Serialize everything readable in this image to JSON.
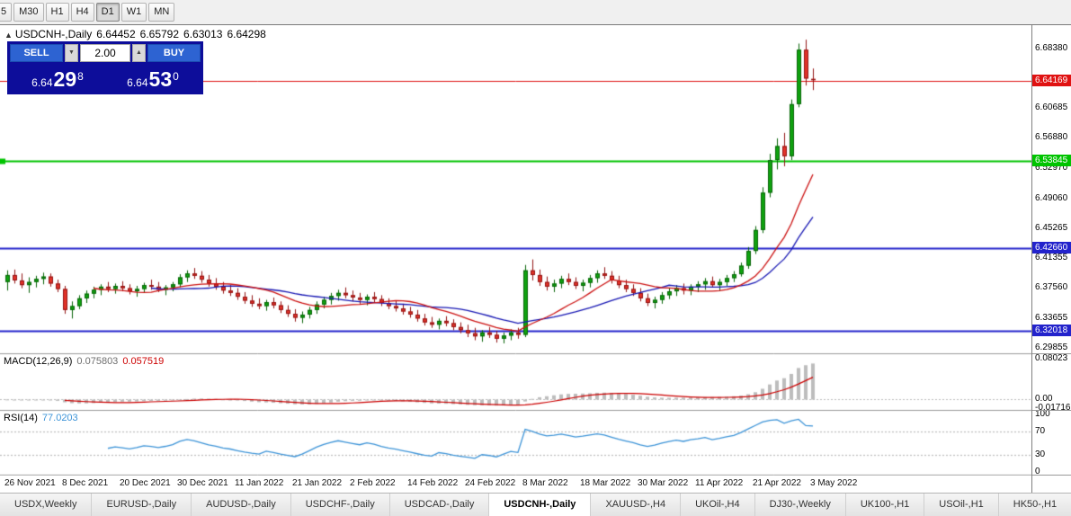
{
  "toolbar": {
    "timeframes": [
      {
        "label": "5",
        "active": false
      },
      {
        "label": "M30",
        "active": false
      },
      {
        "label": "H1",
        "active": false
      },
      {
        "label": "H4",
        "active": false
      },
      {
        "label": "D1",
        "active": true
      },
      {
        "label": "W1",
        "active": false
      },
      {
        "label": "MN",
        "active": false
      }
    ]
  },
  "icons": {
    "collapse": "▲",
    "vol_down": "▼",
    "vol_up": "▲"
  },
  "title": {
    "symbol": "USDCNH-,Daily",
    "open": "6.64452",
    "high": "6.65792",
    "low": "6.63013",
    "close": "6.64298"
  },
  "trade_panel": {
    "sell_label": "SELL",
    "buy_label": "BUY",
    "volume": "2.00",
    "sell_price": {
      "small": "6.64",
      "big": "29",
      "sup": "8"
    },
    "buy_price": {
      "small": "6.64",
      "big": "53",
      "sup": "0"
    }
  },
  "macd_panel": {
    "label": "MACD(12,26,9)",
    "main_value": "0.075803",
    "signal_value": "0.057519",
    "axis": [
      {
        "label": "0.08023",
        "value": 0.08023
      },
      {
        "label": "0.00",
        "value": 0
      },
      {
        "label": "-0.01716",
        "value": -0.01716
      }
    ]
  },
  "rsi_panel": {
    "label": "RSI(14)",
    "value": "77.0203",
    "axis": [
      {
        "label": "100",
        "value": 100
      },
      {
        "label": "70",
        "value": 70
      },
      {
        "label": "30",
        "value": 30
      },
      {
        "label": "0",
        "value": 0
      }
    ],
    "levels": [
      70,
      30
    ]
  },
  "price_axis_labels": [
    "6.68380",
    "6.60685",
    "6.56880",
    "6.52970",
    "6.49060",
    "6.45265",
    "6.41355",
    "6.37560",
    "6.33655",
    "6.29855"
  ],
  "time_axis": [
    {
      "text": "26 Nov 2021",
      "bar": 0
    },
    {
      "text": "8 Dec 2021",
      "bar": 8
    },
    {
      "text": "20 Dec 2021",
      "bar": 16
    },
    {
      "text": "30 Dec 2021",
      "bar": 24
    },
    {
      "text": "11 Jan 2022",
      "bar": 32
    },
    {
      "text": "21 Jan 2022",
      "bar": 40
    },
    {
      "text": "2 Feb 2022",
      "bar": 48
    },
    {
      "text": "14 Feb 2022",
      "bar": 56
    },
    {
      "text": "24 Feb 2022",
      "bar": 64
    },
    {
      "text": "8 Mar 2022",
      "bar": 72
    },
    {
      "text": "18 Mar 2022",
      "bar": 80
    },
    {
      "text": "30 Mar 2022",
      "bar": 88
    },
    {
      "text": "11 Apr 2022",
      "bar": 96
    },
    {
      "text": "21 Apr 2022",
      "bar": 104
    },
    {
      "text": "3 May 2022",
      "bar": 112
    }
  ],
  "tabs": [
    {
      "label": "USDX,Weekly",
      "active": false
    },
    {
      "label": "EURUSD-,Daily",
      "active": false
    },
    {
      "label": "AUDUSD-,Daily",
      "active": false
    },
    {
      "label": "USDCHF-,Daily",
      "active": false
    },
    {
      "label": "USDCAD-,Daily",
      "active": false
    },
    {
      "label": "USDCNH-,Daily",
      "active": true
    },
    {
      "label": "XAUUSD-,H4",
      "active": false
    },
    {
      "label": "UKOil-,H4",
      "active": false
    },
    {
      "label": "DJ30-,Weekly",
      "active": false
    },
    {
      "label": "UK100-,H1",
      "active": false
    },
    {
      "label": "USOil-,H1",
      "active": false
    },
    {
      "label": "HK50-,H1",
      "active": false
    }
  ],
  "chart_data": {
    "type": "candlestick",
    "symbol": "USDCNH-",
    "timeframe": "Daily",
    "y_range": [
      6.2912,
      6.7137
    ],
    "levels": [
      {
        "price": 6.64169,
        "label": "6.64169",
        "color": "#e01212",
        "line_width": 1,
        "handle": false
      },
      {
        "price": 6.53845,
        "label": "6.53845",
        "color": "#00c400",
        "line_width": 2,
        "handle": true
      },
      {
        "price": 6.4266,
        "label": "6.42660",
        "color": "#2323cc",
        "line_width": 2,
        "handle": false
      },
      {
        "price": 6.32018,
        "label": "6.32018",
        "color": "#2323cc",
        "line_width": 2,
        "handle": false
      }
    ],
    "ma_fast": {
      "period": 13,
      "color": "#cc1111"
    },
    "ma_slow": {
      "period": 21,
      "color": "#1818b4"
    },
    "macd": {
      "fast": 12,
      "slow": 26,
      "signal": 9,
      "range": [
        -0.01716,
        0.08023
      ]
    },
    "rsi": {
      "period": 14,
      "range": [
        0,
        100
      ]
    },
    "colors": {
      "up": "#0fa30f",
      "up_border": "#076307",
      "down": "#e23228",
      "down_border": "#921313",
      "macd_hist": "#bdbdbd",
      "macd_signal": "#cc0000",
      "rsi_line": "#3d94d8",
      "dotted": "#bcbcbc",
      "separator": "#9a9a9a"
    },
    "ohlc": [
      [
        6.383,
        6.398,
        6.372,
        6.392
      ],
      [
        6.392,
        6.399,
        6.381,
        6.385
      ],
      [
        6.385,
        6.394,
        6.375,
        6.379
      ],
      [
        6.379,
        6.389,
        6.369,
        6.383
      ],
      [
        6.383,
        6.391,
        6.376,
        6.387
      ],
      [
        6.387,
        6.395,
        6.38,
        6.39
      ],
      [
        6.39,
        6.394,
        6.377,
        6.381
      ],
      [
        6.381,
        6.386,
        6.37,
        6.374
      ],
      [
        6.374,
        6.378,
        6.342,
        6.347
      ],
      [
        6.347,
        6.358,
        6.336,
        6.352
      ],
      [
        6.352,
        6.366,
        6.348,
        6.362
      ],
      [
        6.362,
        6.372,
        6.356,
        6.368
      ],
      [
        6.368,
        6.377,
        6.362,
        6.373
      ],
      [
        6.373,
        6.38,
        6.366,
        6.377
      ],
      [
        6.377,
        6.383,
        6.37,
        6.374
      ],
      [
        6.374,
        6.381,
        6.368,
        6.378
      ],
      [
        6.378,
        6.384,
        6.371,
        6.375
      ],
      [
        6.375,
        6.38,
        6.367,
        6.371
      ],
      [
        6.371,
        6.378,
        6.364,
        6.374
      ],
      [
        6.374,
        6.382,
        6.369,
        6.379
      ],
      [
        6.379,
        6.386,
        6.373,
        6.377
      ],
      [
        6.377,
        6.383,
        6.37,
        6.373
      ],
      [
        6.373,
        6.379,
        6.366,
        6.376
      ],
      [
        6.376,
        6.383,
        6.371,
        6.38
      ],
      [
        6.38,
        6.393,
        6.376,
        6.389
      ],
      [
        6.389,
        6.398,
        6.383,
        6.394
      ],
      [
        6.394,
        6.401,
        6.387,
        6.391
      ],
      [
        6.391,
        6.397,
        6.382,
        6.386
      ],
      [
        6.386,
        6.392,
        6.377,
        6.381
      ],
      [
        6.381,
        6.388,
        6.373,
        6.377
      ],
      [
        6.377,
        6.383,
        6.368,
        6.372
      ],
      [
        6.372,
        6.379,
        6.365,
        6.369
      ],
      [
        6.369,
        6.375,
        6.36,
        6.364
      ],
      [
        6.364,
        6.37,
        6.355,
        6.359
      ],
      [
        6.359,
        6.366,
        6.351,
        6.355
      ],
      [
        6.355,
        6.362,
        6.348,
        6.352
      ],
      [
        6.352,
        6.36,
        6.346,
        6.357
      ],
      [
        6.357,
        6.363,
        6.349,
        6.353
      ],
      [
        6.353,
        6.358,
        6.343,
        6.347
      ],
      [
        6.347,
        6.353,
        6.338,
        6.342
      ],
      [
        6.342,
        6.348,
        6.332,
        6.337
      ],
      [
        6.337,
        6.345,
        6.33,
        6.341
      ],
      [
        6.341,
        6.351,
        6.336,
        6.347
      ],
      [
        6.347,
        6.358,
        6.342,
        6.354
      ],
      [
        6.354,
        6.364,
        6.349,
        6.36
      ],
      [
        6.36,
        6.369,
        6.354,
        6.365
      ],
      [
        6.365,
        6.373,
        6.359,
        6.369
      ],
      [
        6.369,
        6.376,
        6.362,
        6.366
      ],
      [
        6.366,
        6.372,
        6.358,
        6.363
      ],
      [
        6.363,
        6.369,
        6.355,
        6.36
      ],
      [
        6.36,
        6.367,
        6.353,
        6.364
      ],
      [
        6.364,
        6.37,
        6.357,
        6.361
      ],
      [
        6.361,
        6.366,
        6.352,
        6.356
      ],
      [
        6.356,
        6.362,
        6.348,
        6.352
      ],
      [
        6.352,
        6.359,
        6.345,
        6.349
      ],
      [
        6.349,
        6.355,
        6.341,
        6.345
      ],
      [
        6.345,
        6.351,
        6.337,
        6.341
      ],
      [
        6.341,
        6.347,
        6.332,
        6.336
      ],
      [
        6.336,
        6.342,
        6.327,
        6.331
      ],
      [
        6.331,
        6.338,
        6.324,
        6.328
      ],
      [
        6.328,
        6.336,
        6.322,
        6.333
      ],
      [
        6.333,
        6.339,
        6.326,
        6.33
      ],
      [
        6.33,
        6.335,
        6.321,
        6.325
      ],
      [
        6.325,
        6.331,
        6.317,
        6.321
      ],
      [
        6.321,
        6.328,
        6.312,
        6.317
      ],
      [
        6.317,
        6.324,
        6.308,
        6.313
      ],
      [
        6.313,
        6.321,
        6.306,
        6.318
      ],
      [
        6.318,
        6.325,
        6.311,
        6.315
      ],
      [
        6.315,
        6.32,
        6.305,
        6.31
      ],
      [
        6.31,
        6.318,
        6.304,
        6.314
      ],
      [
        6.314,
        6.322,
        6.308,
        6.318
      ],
      [
        6.318,
        6.324,
        6.31,
        6.315
      ],
      [
        6.315,
        6.405,
        6.312,
        6.398
      ],
      [
        6.398,
        6.412,
        6.385,
        6.392
      ],
      [
        6.392,
        6.399,
        6.378,
        6.383
      ],
      [
        6.383,
        6.39,
        6.372,
        6.377
      ],
      [
        6.377,
        6.386,
        6.37,
        6.381
      ],
      [
        6.381,
        6.391,
        6.375,
        6.387
      ],
      [
        6.387,
        6.394,
        6.379,
        6.383
      ],
      [
        6.383,
        6.389,
        6.374,
        6.378
      ],
      [
        6.378,
        6.386,
        6.371,
        6.382
      ],
      [
        6.382,
        6.392,
        6.376,
        6.388
      ],
      [
        6.388,
        6.398,
        6.382,
        6.394
      ],
      [
        6.394,
        6.402,
        6.387,
        6.391
      ],
      [
        6.391,
        6.397,
        6.381,
        6.385
      ],
      [
        6.385,
        6.391,
        6.375,
        6.379
      ],
      [
        6.379,
        6.386,
        6.37,
        6.374
      ],
      [
        6.374,
        6.38,
        6.365,
        6.369
      ],
      [
        6.369,
        6.375,
        6.358,
        6.362
      ],
      [
        6.362,
        6.368,
        6.352,
        6.356
      ],
      [
        6.356,
        6.364,
        6.349,
        6.36
      ],
      [
        6.36,
        6.37,
        6.355,
        6.366
      ],
      [
        6.366,
        6.375,
        6.361,
        6.371
      ],
      [
        6.371,
        6.379,
        6.365,
        6.375
      ],
      [
        6.375,
        6.381,
        6.367,
        6.372
      ],
      [
        6.372,
        6.38,
        6.366,
        6.377
      ],
      [
        6.377,
        6.384,
        6.37,
        6.38
      ],
      [
        6.38,
        6.388,
        6.373,
        6.384
      ],
      [
        6.384,
        6.39,
        6.376,
        6.379
      ],
      [
        6.379,
        6.387,
        6.372,
        6.383
      ],
      [
        6.383,
        6.392,
        6.378,
        6.388
      ],
      [
        6.388,
        6.397,
        6.383,
        6.393
      ],
      [
        6.393,
        6.408,
        6.39,
        6.404
      ],
      [
        6.404,
        6.428,
        6.4,
        6.423
      ],
      [
        6.423,
        6.455,
        6.419,
        6.45
      ],
      [
        6.45,
        6.505,
        6.446,
        6.498
      ],
      [
        6.498,
        6.548,
        6.492,
        6.54
      ],
      [
        6.54,
        6.568,
        6.528,
        6.558
      ],
      [
        6.558,
        6.575,
        6.532,
        6.545
      ],
      [
        6.545,
        6.618,
        6.54,
        6.612
      ],
      [
        6.612,
        6.69,
        6.608,
        6.682
      ],
      [
        6.682,
        6.695,
        6.636,
        6.645
      ],
      [
        6.6445,
        6.6579,
        6.6301,
        6.643
      ]
    ]
  }
}
